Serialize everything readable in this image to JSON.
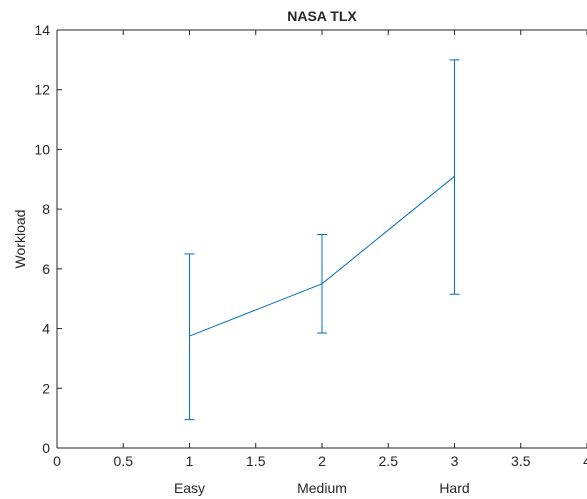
{
  "chart_data": {
    "type": "line",
    "title": "NASA TLX",
    "xlabel": "",
    "ylabel": "Workload",
    "xlim": [
      0,
      4
    ],
    "ylim": [
      0,
      14
    ],
    "xticks": [
      0,
      0.5,
      1,
      1.5,
      2,
      2.5,
      3,
      3.5,
      4
    ],
    "xtick_labels": [
      "0",
      "0.5",
      "1",
      "1.5",
      "2",
      "2.5",
      "3",
      "3.5",
      "4"
    ],
    "yticks": [
      0,
      2,
      4,
      6,
      8,
      10,
      12,
      14
    ],
    "ytick_labels": [
      "0",
      "2",
      "4",
      "6",
      "8",
      "10",
      "12",
      "14"
    ],
    "categories": [
      "Easy",
      "Medium",
      "Hard"
    ],
    "grid": false,
    "series": [
      {
        "x": [
          1,
          2,
          3
        ],
        "values": [
          3.75,
          5.5,
          9.1
        ],
        "error_low": [
          0.95,
          3.85,
          5.15
        ],
        "error_high": [
          6.5,
          7.15,
          13.0
        ],
        "color": "#0072BD"
      }
    ]
  }
}
